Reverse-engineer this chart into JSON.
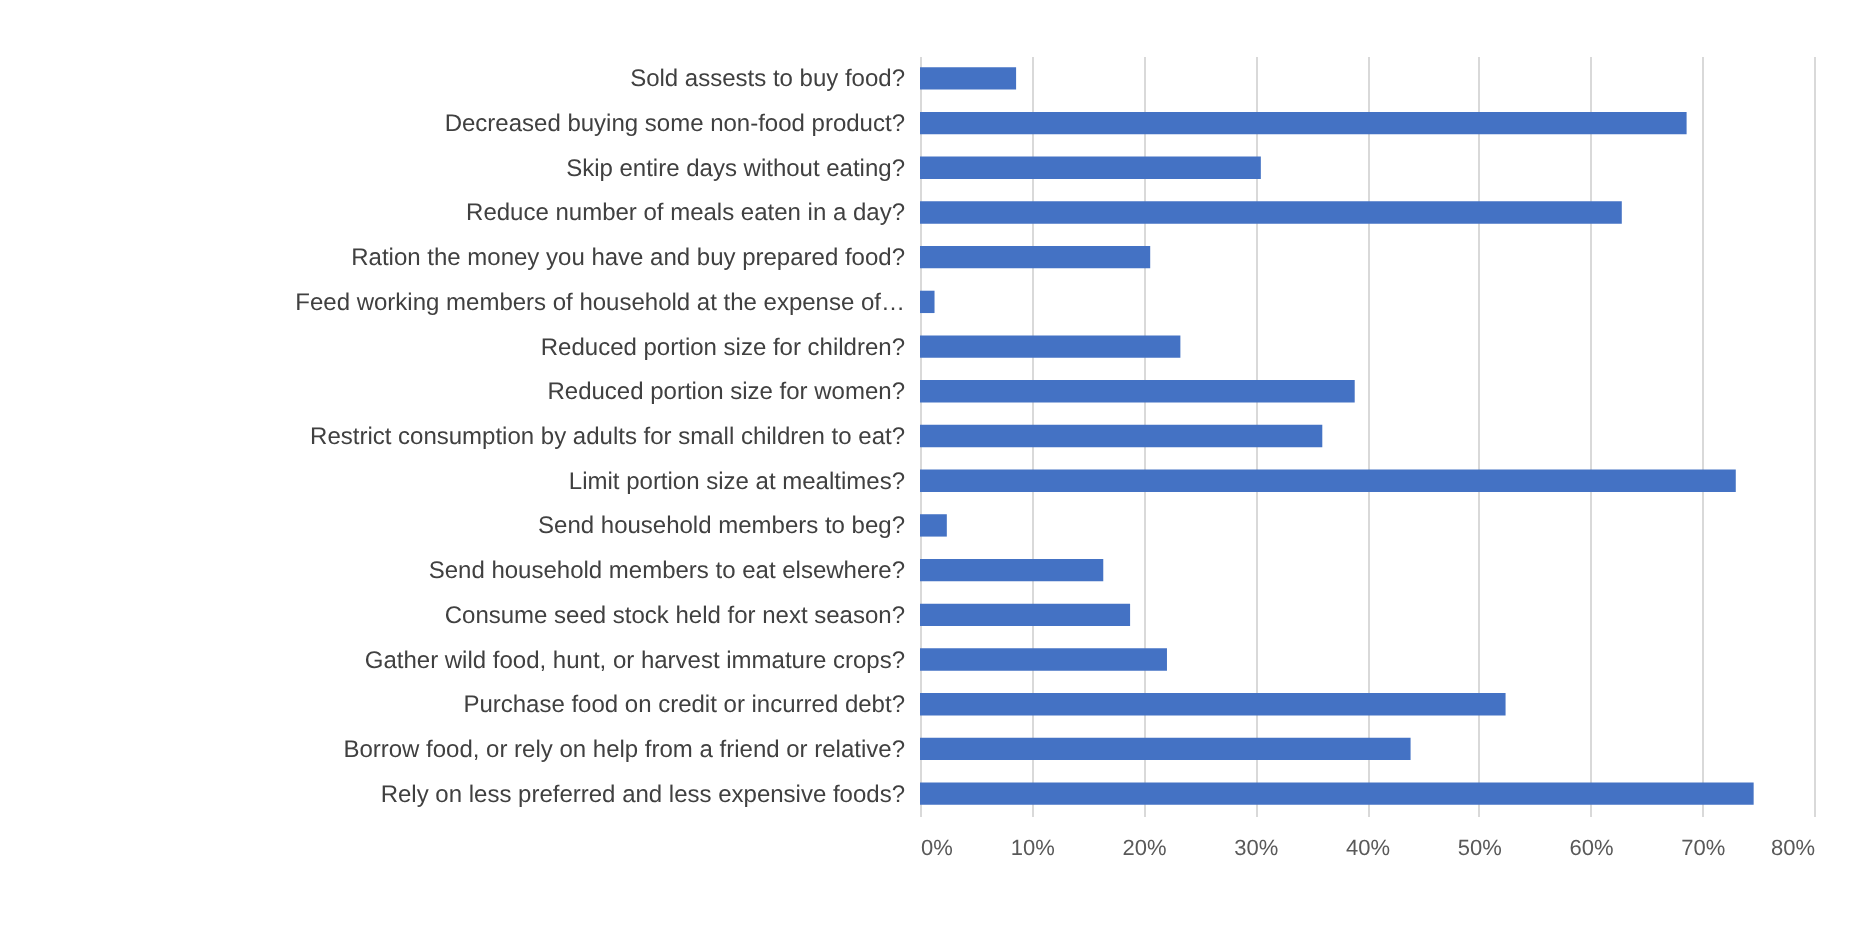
{
  "chart_data": {
    "type": "bar",
    "orientation": "horizontal",
    "categories": [
      "Sold assests to buy food?",
      "Decreased buying some non-food product?",
      "Skip entire days without eating?",
      "Reduce number of meals eaten in a day?",
      "Ration the money you have and buy prepared food?",
      "Feed working members of household at the expense of…",
      "Reduced portion size for children?",
      "Reduced portion size for women?",
      "Restrict consumption by adults for small children to eat?",
      "Limit portion size at mealtimes?",
      "Send household members to beg?",
      "Send household members to eat elsewhere?",
      "Consume seed stock held for next season?",
      "Gather wild food, hunt, or harvest immature crops?",
      "Purchase food on credit or incurred debt?",
      "Borrow food, or rely on help from a friend or relative?",
      "Rely on less preferred and less expensive foods?"
    ],
    "values": [
      8.6,
      68.6,
      30.5,
      62.8,
      20.6,
      1.3,
      23.3,
      38.9,
      36.0,
      73.0,
      2.4,
      16.4,
      18.8,
      22.1,
      52.4,
      43.9,
      74.6
    ],
    "color": "#4472c4",
    "xlim": [
      0,
      80
    ],
    "xticks": [
      {
        "value": 0,
        "label": "0%"
      },
      {
        "value": 10,
        "label": "10%"
      },
      {
        "value": 20,
        "label": "20%"
      },
      {
        "value": 30,
        "label": "30%"
      },
      {
        "value": 40,
        "label": "40%"
      },
      {
        "value": 50,
        "label": "50%"
      },
      {
        "value": 60,
        "label": "60%"
      },
      {
        "value": 70,
        "label": "70%"
      },
      {
        "value": 80,
        "label": "80%"
      }
    ],
    "grid": "x"
  }
}
